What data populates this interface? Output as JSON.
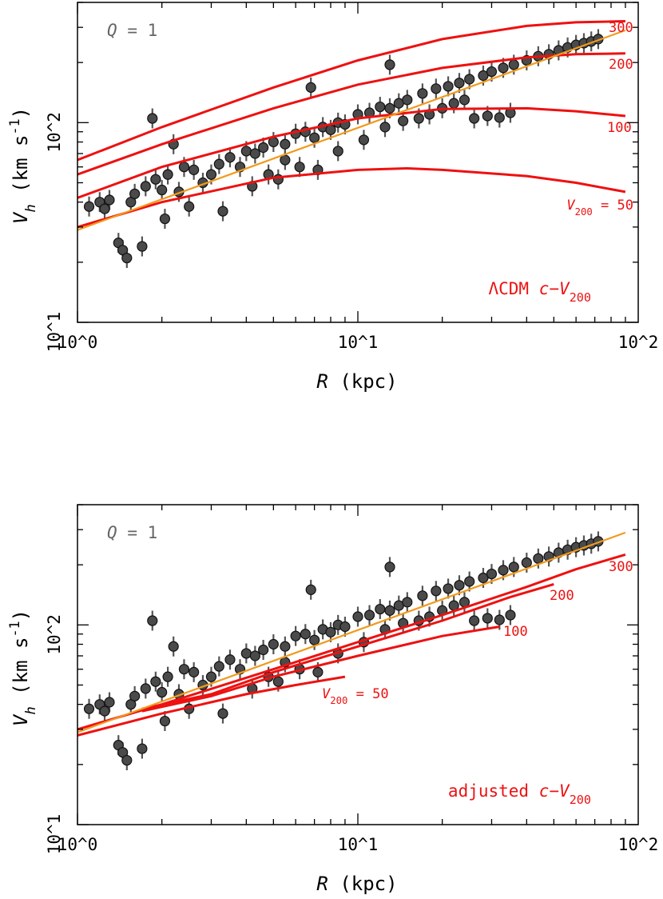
{
  "chart_data": [
    {
      "type": "scatter",
      "panel_label": "Q = 1",
      "annotation": "ΛCDM c−V200",
      "xlabel": "R (kpc)",
      "ylabel": "V_h (km s^-1)",
      "xscale": "log",
      "yscale": "log",
      "xlim": [
        1,
        100
      ],
      "ylim": [
        10,
        400
      ],
      "x_ticks": [
        "10^0",
        "10^1",
        "10^2"
      ],
      "y_ticks": [
        "10^1",
        "10^2"
      ],
      "grid": false,
      "colors": {
        "points": "#4a4a4a",
        "errorbars": "#555555",
        "curves": "#ee1111",
        "fit": "#f29a1c",
        "panel_label": "#666666"
      },
      "fit_line": {
        "x": [
          1,
          90
        ],
        "y": [
          29,
          290
        ]
      },
      "curves": [
        {
          "label": "300",
          "x": [
            1,
            2,
            5,
            10,
            20,
            40,
            60,
            90
          ],
          "y": [
            65,
            95,
            150,
            205,
            262,
            305,
            318,
            322
          ]
        },
        {
          "label": "200",
          "x": [
            1,
            2,
            5,
            10,
            20,
            40,
            60,
            90
          ],
          "y": [
            55,
            78,
            118,
            155,
            188,
            212,
            220,
            222
          ]
        },
        {
          "label": "100",
          "x": [
            1,
            2,
            5,
            10,
            20,
            40,
            60,
            90
          ],
          "y": [
            42,
            60,
            85,
            105,
            117,
            118,
            114,
            108
          ]
        },
        {
          "label": "V200 = 50",
          "x": [
            1,
            2,
            5,
            10,
            15,
            20,
            40,
            60,
            90
          ],
          "y": [
            30,
            40,
            53,
            58,
            59,
            58,
            54,
            50,
            45
          ]
        }
      ],
      "points": {
        "x": [
          1.1,
          1.2,
          1.25,
          1.3,
          1.4,
          1.45,
          1.5,
          1.55,
          1.6,
          1.7,
          1.75,
          1.85,
          1.9,
          2.0,
          2.1,
          2.2,
          2.3,
          2.4,
          2.6,
          2.8,
          3.0,
          3.2,
          3.5,
          3.8,
          4.0,
          4.3,
          4.6,
          5.0,
          5.5,
          6.0,
          6.5,
          7.0,
          7.5,
          8.0,
          8.5,
          9.0,
          10,
          11,
          12,
          13,
          14,
          15,
          17,
          19,
          21,
          23,
          25,
          28,
          30,
          33,
          36,
          40,
          44,
          48,
          52,
          56,
          60,
          64,
          68,
          72,
          2.05,
          2.5,
          3.3,
          4.2,
          5.2,
          6.2,
          7.2,
          8.5,
          10.5,
          12.5,
          14.5,
          16.5,
          18,
          20,
          22,
          24,
          26,
          29,
          32,
          35,
          13,
          6.8,
          5.5,
          4.8
        ],
        "y": [
          38,
          40,
          37,
          41,
          25,
          23,
          21,
          40,
          44,
          24,
          48,
          105,
          52,
          46,
          55,
          78,
          45,
          60,
          58,
          50,
          55,
          62,
          67,
          60,
          72,
          70,
          75,
          80,
          78,
          88,
          90,
          84,
          95,
          92,
          100,
          98,
          110,
          112,
          120,
          118,
          125,
          130,
          140,
          148,
          152,
          158,
          165,
          172,
          180,
          188,
          195,
          205,
          215,
          220,
          230,
          238,
          245,
          250,
          255,
          262,
          33,
          38,
          36,
          48,
          52,
          60,
          58,
          72,
          82,
          95,
          102,
          105,
          110,
          118,
          125,
          130,
          105,
          108,
          106,
          112,
          195,
          150,
          65,
          55
        ],
        "yerr_dex": 0.05
      }
    },
    {
      "type": "scatter",
      "panel_label": "Q = 1",
      "annotation": "adjusted c−V200",
      "xlabel": "R (kpc)",
      "ylabel": "V_h (km s^-1)",
      "xscale": "log",
      "yscale": "log",
      "xlim": [
        1,
        100
      ],
      "ylim": [
        10,
        400
      ],
      "x_ticks": [
        "10^0",
        "10^1",
        "10^2"
      ],
      "y_ticks": [
        "10^1",
        "10^2"
      ],
      "grid": false,
      "colors": {
        "points": "#4a4a4a",
        "errorbars": "#555555",
        "curves": "#ee1111",
        "fit": "#f29a1c",
        "panel_label": "#666666"
      },
      "fit_line": {
        "x": [
          1,
          90
        ],
        "y": [
          29,
          290
        ]
      },
      "curves": [
        {
          "label": "300",
          "x": [
            1,
            2,
            5,
            10,
            20,
            40,
            60,
            90
          ],
          "y": [
            30,
            40,
            60,
            82,
            112,
            155,
            190,
            225
          ]
        },
        {
          "label": "200",
          "x": [
            1.7,
            3,
            5,
            10,
            20,
            35,
            50
          ],
          "y": [
            38,
            45,
            58,
            78,
            105,
            138,
            160
          ]
        },
        {
          "label": "100",
          "x": [
            1.7,
            3,
            5,
            10,
            20,
            32
          ],
          "y": [
            37,
            44,
            55,
            70,
            88,
            98
          ]
        },
        {
          "label": "V200 = 50",
          "x": [
            1,
            2,
            4,
            6,
            9
          ],
          "y": [
            28,
            36,
            45,
            50,
            55
          ]
        }
      ],
      "points": {
        "x": [
          1.1,
          1.2,
          1.25,
          1.3,
          1.4,
          1.45,
          1.5,
          1.55,
          1.6,
          1.7,
          1.75,
          1.85,
          1.9,
          2.0,
          2.1,
          2.2,
          2.3,
          2.4,
          2.6,
          2.8,
          3.0,
          3.2,
          3.5,
          3.8,
          4.0,
          4.3,
          4.6,
          5.0,
          5.5,
          6.0,
          6.5,
          7.0,
          7.5,
          8.0,
          8.5,
          9.0,
          10,
          11,
          12,
          13,
          14,
          15,
          17,
          19,
          21,
          23,
          25,
          28,
          30,
          33,
          36,
          40,
          44,
          48,
          52,
          56,
          60,
          64,
          68,
          72,
          2.05,
          2.5,
          3.3,
          4.2,
          5.2,
          6.2,
          7.2,
          8.5,
          10.5,
          12.5,
          14.5,
          16.5,
          18,
          20,
          22,
          24,
          26,
          29,
          32,
          35,
          13,
          6.8,
          5.5,
          4.8
        ],
        "y": [
          38,
          40,
          37,
          41,
          25,
          23,
          21,
          40,
          44,
          24,
          48,
          105,
          52,
          46,
          55,
          78,
          45,
          60,
          58,
          50,
          55,
          62,
          67,
          60,
          72,
          70,
          75,
          80,
          78,
          88,
          90,
          84,
          95,
          92,
          100,
          98,
          110,
          112,
          120,
          118,
          125,
          130,
          140,
          148,
          152,
          158,
          165,
          172,
          180,
          188,
          195,
          205,
          215,
          220,
          230,
          238,
          245,
          250,
          255,
          262,
          33,
          38,
          36,
          48,
          52,
          60,
          58,
          72,
          82,
          95,
          102,
          105,
          110,
          118,
          125,
          130,
          105,
          108,
          106,
          112,
          195,
          150,
          65,
          55
        ],
        "yerr_dex": 0.05
      }
    }
  ]
}
